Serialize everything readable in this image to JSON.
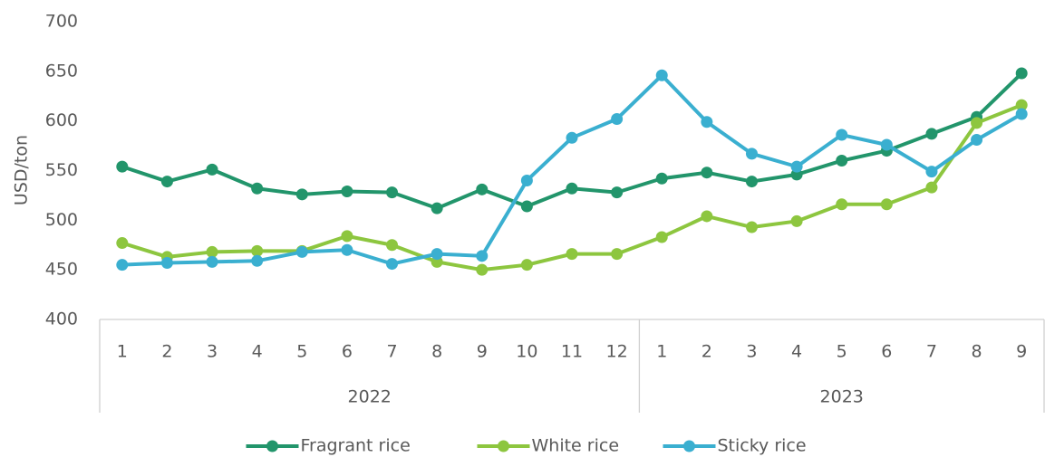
{
  "chart_data": {
    "type": "line",
    "y_label": "USD/ton",
    "categories": [
      "1",
      "2",
      "3",
      "4",
      "5",
      "6",
      "7",
      "8",
      "9",
      "10",
      "11",
      "12",
      "1",
      "2",
      "3",
      "4",
      "5",
      "6",
      "7",
      "8",
      "9"
    ],
    "category_groups": [
      {
        "label": "2022",
        "span": 12
      },
      {
        "label": "2023",
        "span": 9
      }
    ],
    "series": [
      {
        "name": "Fragrant rice",
        "color": "#22956b",
        "values": [
          554,
          539,
          551,
          532,
          526,
          529,
          528,
          512,
          531,
          514,
          532,
          528,
          542,
          548,
          539,
          546,
          560,
          570,
          587,
          604,
          648
        ]
      },
      {
        "name": "White rice",
        "color": "#8dc63f",
        "values": [
          477,
          463,
          468,
          469,
          469,
          484,
          475,
          458,
          450,
          455,
          466,
          466,
          483,
          504,
          493,
          499,
          516,
          516,
          533,
          598,
          616
        ]
      },
      {
        "name": "Sticky rice",
        "color": "#3aafd0",
        "values": [
          455,
          457,
          458,
          459,
          468,
          470,
          456,
          466,
          464,
          540,
          583,
          602,
          646,
          599,
          567,
          554,
          586,
          576,
          549,
          581,
          607
        ]
      }
    ],
    "ylim": [
      400,
      700
    ],
    "yticks": [
      400,
      450,
      500,
      550,
      600,
      650,
      700
    ],
    "grid": false,
    "legend": "bottom"
  }
}
